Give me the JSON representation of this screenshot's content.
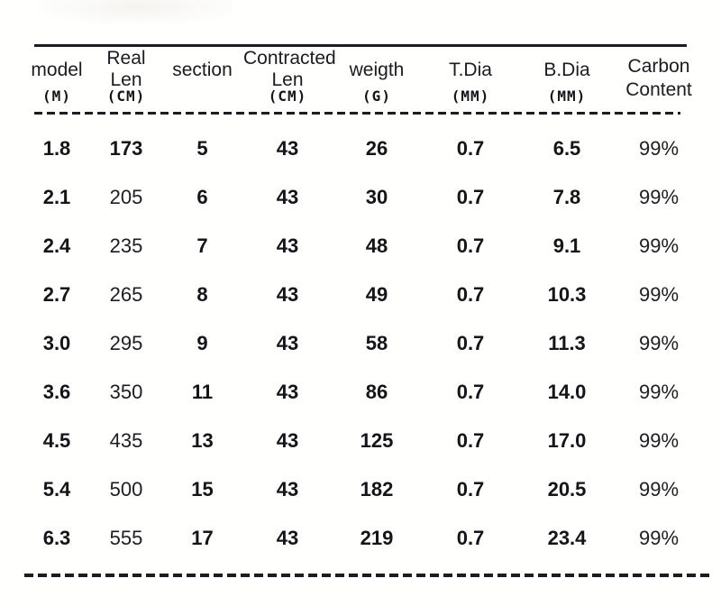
{
  "chart_data": {
    "type": "table",
    "title": "",
    "columns": [
      {
        "label": "model",
        "unit": "(M)"
      },
      {
        "label": "Real Len",
        "unit": "(CM)"
      },
      {
        "label": "section",
        "unit": ""
      },
      {
        "label": "Contracted Len",
        "unit": "(CM)"
      },
      {
        "label": "weigth",
        "unit": "(G)"
      },
      {
        "label": "T.Dia",
        "unit": "(MM)"
      },
      {
        "label": "B.Dia",
        "unit": "(MM)"
      },
      {
        "label": "Carbon Content",
        "unit": ""
      }
    ],
    "rows": [
      [
        "1.8",
        "173",
        "5",
        "43",
        "26",
        "0.7",
        "6.5",
        "99%"
      ],
      [
        "2.1",
        "205",
        "6",
        "43",
        "30",
        "0.7",
        "7.8",
        "99%"
      ],
      [
        "2.4",
        "235",
        "7",
        "43",
        "48",
        "0.7",
        "9.1",
        "99%"
      ],
      [
        "2.7",
        "265",
        "8",
        "43",
        "49",
        "0.7",
        "10.3",
        "99%"
      ],
      [
        "3.0",
        "295",
        "9",
        "43",
        "58",
        "0.7",
        "11.3",
        "99%"
      ],
      [
        "3.6",
        "350",
        "11",
        "43",
        "86",
        "0.7",
        "14.0",
        "99%"
      ],
      [
        "4.5",
        "435",
        "13",
        "43",
        "125",
        "0.7",
        "17.0",
        "99%"
      ],
      [
        "5.4",
        "500",
        "15",
        "43",
        "182",
        "0.7",
        "20.5",
        "99%"
      ],
      [
        "6.3",
        "555",
        "17",
        "43",
        "219",
        "0.7",
        "23.4",
        "99%"
      ]
    ],
    "colors": {
      "text": "#17171c",
      "rule": "#1c1c22",
      "background": "#ffffff"
    },
    "layout": {
      "grid": "off",
      "rules": "top solid, header dashed, bottom dashed"
    }
  }
}
